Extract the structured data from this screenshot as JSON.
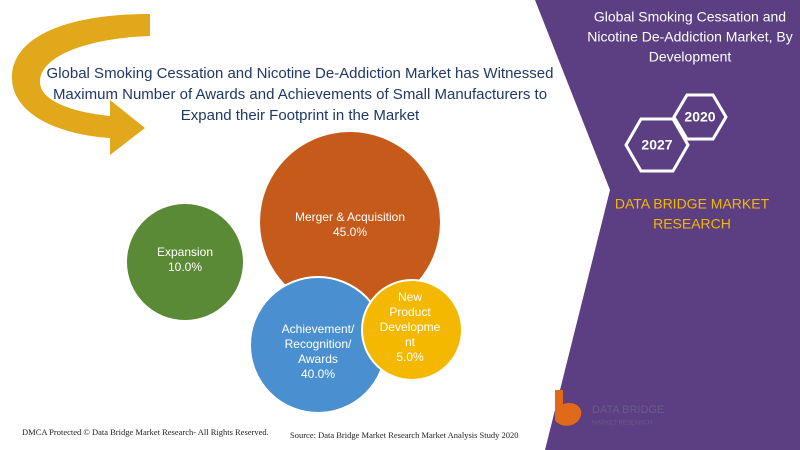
{
  "headline": [
    "Global Smoking Cessation and Nicotine De-Addiction Market has Witnessed",
    "Maximum Number of Awards and Achievements  of Small Manufacturers to",
    "Expand their Footprint in the Market"
  ],
  "panel": {
    "title": [
      "Global Smoking Cessation and",
      "Nicotine De-Addiction Market, By",
      "Development"
    ],
    "years": [
      "2020",
      "2027"
    ],
    "brand": [
      "DATA BRIDGE MARKET",
      "RESEARCH"
    ]
  },
  "bubbles": [
    {
      "label": [
        "Expansion"
      ],
      "value": "10.0%"
    },
    {
      "label": [
        "Merger & Acquisition"
      ],
      "value": "45.0%"
    },
    {
      "label": [
        "Achievement/",
        "Recognition/",
        "Awards"
      ],
      "value": "40.0%"
    },
    {
      "label": [
        "New",
        "Product",
        "Developme",
        "nt"
      ],
      "value": "5.0%"
    }
  ],
  "logo": [
    "DATA BRIDGE",
    "MARKET RESEARCH"
  ],
  "footer": {
    "left": "DMCA Protected © Data Bridge Market Research- All Rights Reserved.",
    "right": "Source: Data Bridge Market Research Market Analysis Study 2020"
  }
}
